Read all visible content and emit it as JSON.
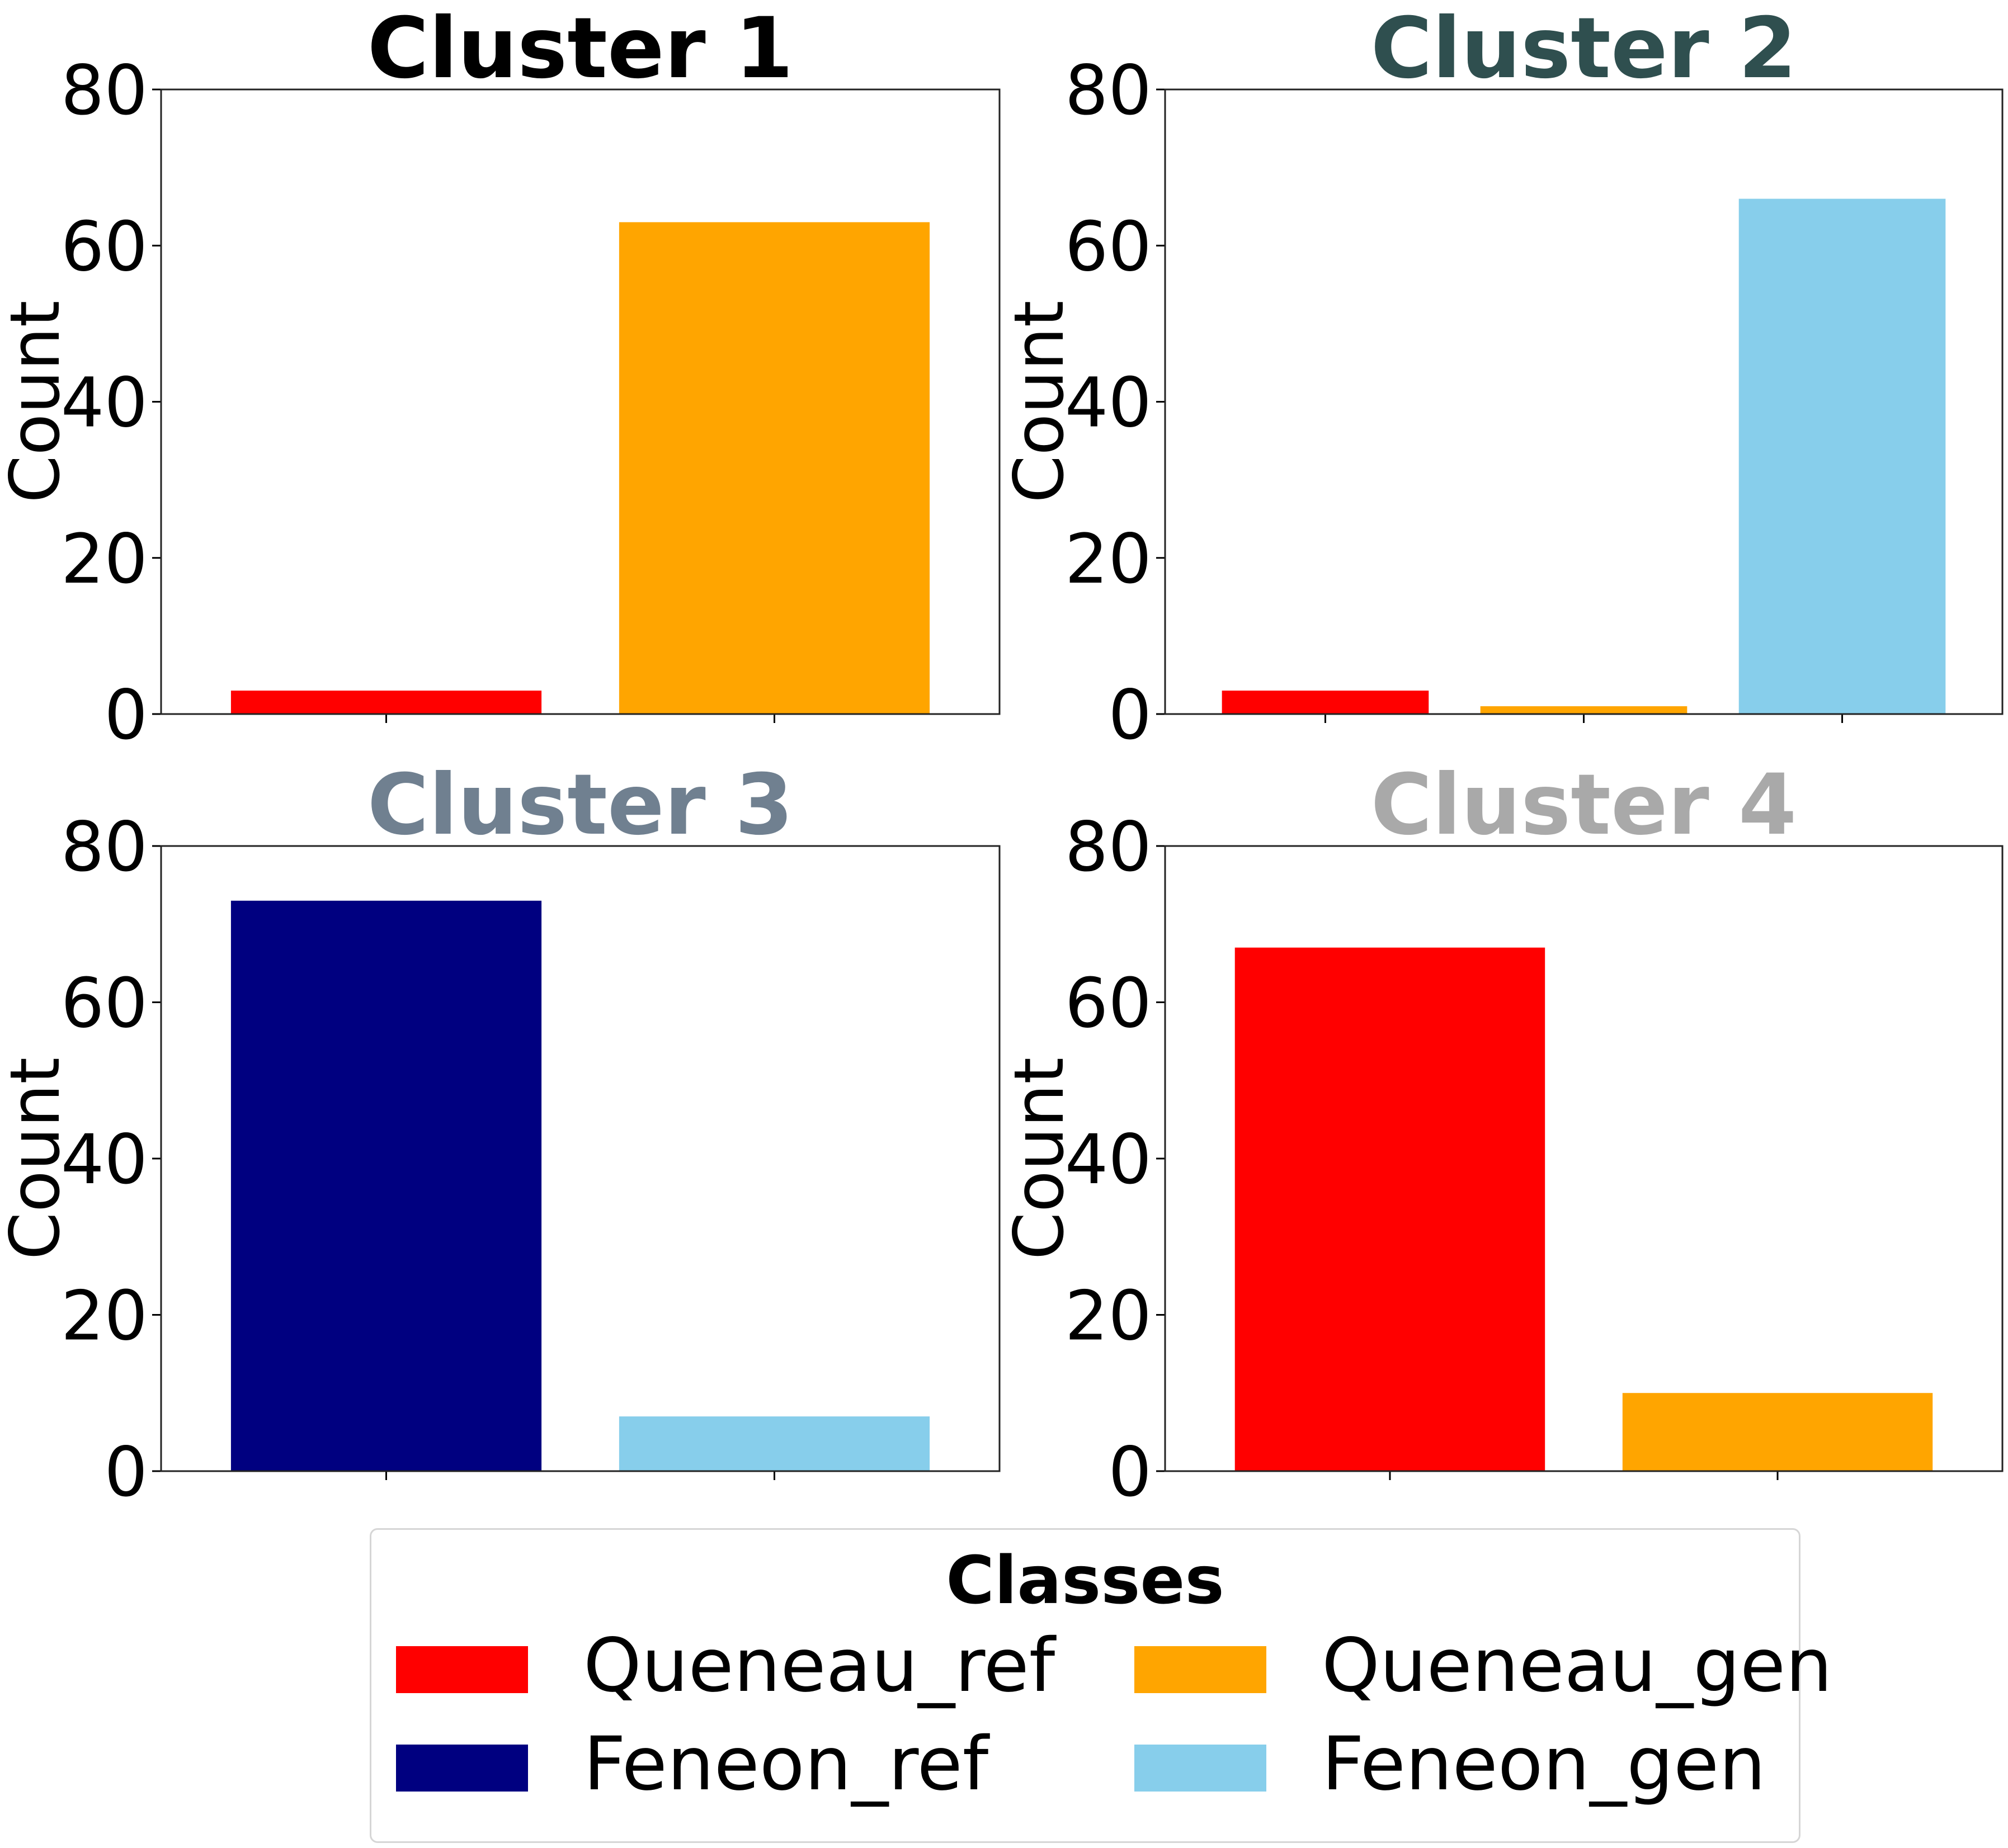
{
  "chart_data": [
    {
      "type": "bar",
      "title": "Cluster 1",
      "title_color": "#000000",
      "ylabel": "Count",
      "ylim": [
        0,
        80
      ],
      "yticks": [
        0,
        20,
        40,
        60,
        80
      ],
      "categories": [
        "Queneau_ref",
        "Queneau_gen"
      ],
      "values": [
        3,
        63
      ],
      "colors": [
        "#ff0000",
        "#ffa500"
      ]
    },
    {
      "type": "bar",
      "title": "Cluster 2",
      "title_color": "#2f4f4f",
      "ylabel": "Count",
      "ylim": [
        0,
        80
      ],
      "yticks": [
        0,
        20,
        40,
        60,
        80
      ],
      "categories": [
        "Queneau_ref",
        "Queneau_gen",
        "Feneon_gen"
      ],
      "values": [
        3,
        1,
        66
      ],
      "colors": [
        "#ff0000",
        "#ffa500",
        "#87ceeb"
      ]
    },
    {
      "type": "bar",
      "title": "Cluster 3",
      "title_color": "#708090",
      "ylabel": "Count",
      "ylim": [
        0,
        80
      ],
      "yticks": [
        0,
        20,
        40,
        60,
        80
      ],
      "categories": [
        "Feneon_ref",
        "Feneon_gen"
      ],
      "values": [
        73,
        7
      ],
      "colors": [
        "#000080",
        "#87ceeb"
      ]
    },
    {
      "type": "bar",
      "title": "Cluster 4",
      "title_color": "#a9a9a9",
      "ylabel": "Count",
      "ylim": [
        0,
        80
      ],
      "yticks": [
        0,
        20,
        40,
        60,
        80
      ],
      "categories": [
        "Queneau_ref",
        "Queneau_gen"
      ],
      "values": [
        67,
        10
      ],
      "colors": [
        "#ff0000",
        "#ffa500"
      ]
    }
  ],
  "legend": {
    "title": "Classes",
    "items": [
      {
        "label": "Queneau_ref",
        "color": "#ff0000"
      },
      {
        "label": "Queneau_gen",
        "color": "#ffa500"
      },
      {
        "label": "Feneon_ref",
        "color": "#000080"
      },
      {
        "label": "Feneon_gen",
        "color": "#87ceeb"
      }
    ]
  }
}
